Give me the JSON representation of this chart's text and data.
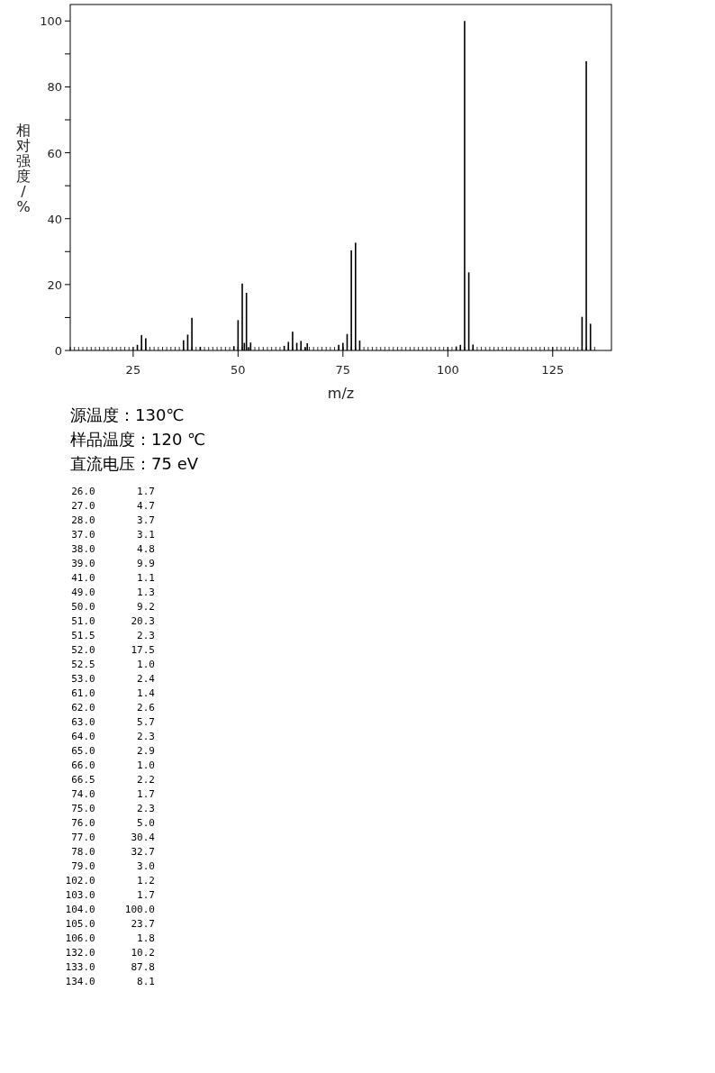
{
  "chart_data": {
    "type": "bar",
    "xlabel": "m/z",
    "ylabel": "相对强度/%",
    "color": "#000000",
    "x": [
      26.0,
      27.0,
      28.0,
      37.0,
      38.0,
      39.0,
      41.0,
      49.0,
      50.0,
      51.0,
      51.5,
      52.0,
      52.5,
      53.0,
      61.0,
      62.0,
      63.0,
      64.0,
      65.0,
      66.0,
      66.5,
      74.0,
      75.0,
      76.0,
      77.0,
      78.0,
      79.0,
      102.0,
      103.0,
      104.0,
      105.0,
      106.0,
      132.0,
      133.0,
      134.0
    ],
    "values": [
      1.7,
      4.7,
      3.7,
      3.1,
      4.8,
      9.9,
      1.1,
      1.3,
      9.2,
      20.3,
      2.3,
      17.5,
      1.0,
      2.4,
      1.4,
      2.6,
      5.7,
      2.3,
      2.9,
      1.0,
      2.2,
      1.7,
      2.3,
      5.0,
      30.4,
      32.7,
      3.0,
      1.2,
      1.7,
      100.0,
      23.7,
      1.8,
      10.2,
      87.8,
      8.1
    ],
    "xlim": [
      10,
      139
    ],
    "xticks": [
      25,
      50,
      75,
      100,
      125
    ],
    "ylim": [
      0,
      105
    ],
    "yticks": [
      0,
      {
        "value": 10,
        "label": null
      },
      20,
      {
        "value": 30,
        "label": null
      },
      40,
      {
        "value": 50,
        "label": null
      },
      60,
      {
        "value": 70,
        "label": null
      },
      80,
      {
        "value": 90,
        "label": null
      },
      100
    ],
    "annotations": [
      "源温度：130℃",
      "样品温度：120 ℃",
      "直流电压：75 eV",
      "  26.0       1.7",
      "  27.0       4.7",
      "  28.0       3.7",
      "  37.0       3.1",
      "  38.0       4.8",
      "  39.0       9.9",
      "  41.0       1.1",
      "  49.0       1.3",
      "  50.0       9.2",
      "  51.0      20.3",
      "  51.5       2.3",
      "  52.0      17.5",
      "  52.5       1.0",
      "  53.0       2.4",
      "  61.0       1.4",
      "  62.0       2.6",
      "  63.0       5.7",
      "  64.0       2.3",
      "  65.0       2.9",
      "  66.0       1.0",
      "  66.5       2.2",
      "  74.0       1.7",
      "  75.0       2.3",
      "  76.0       5.0",
      "  77.0      30.4",
      "  78.0      32.7",
      "  79.0       3.0",
      " 102.0       1.2",
      " 103.0       1.7",
      " 104.0     100.0",
      " 105.0      23.7",
      " 106.0       1.8",
      " 132.0      10.2",
      " 133.0      87.8",
      " 134.0       8.1"
    ]
  }
}
